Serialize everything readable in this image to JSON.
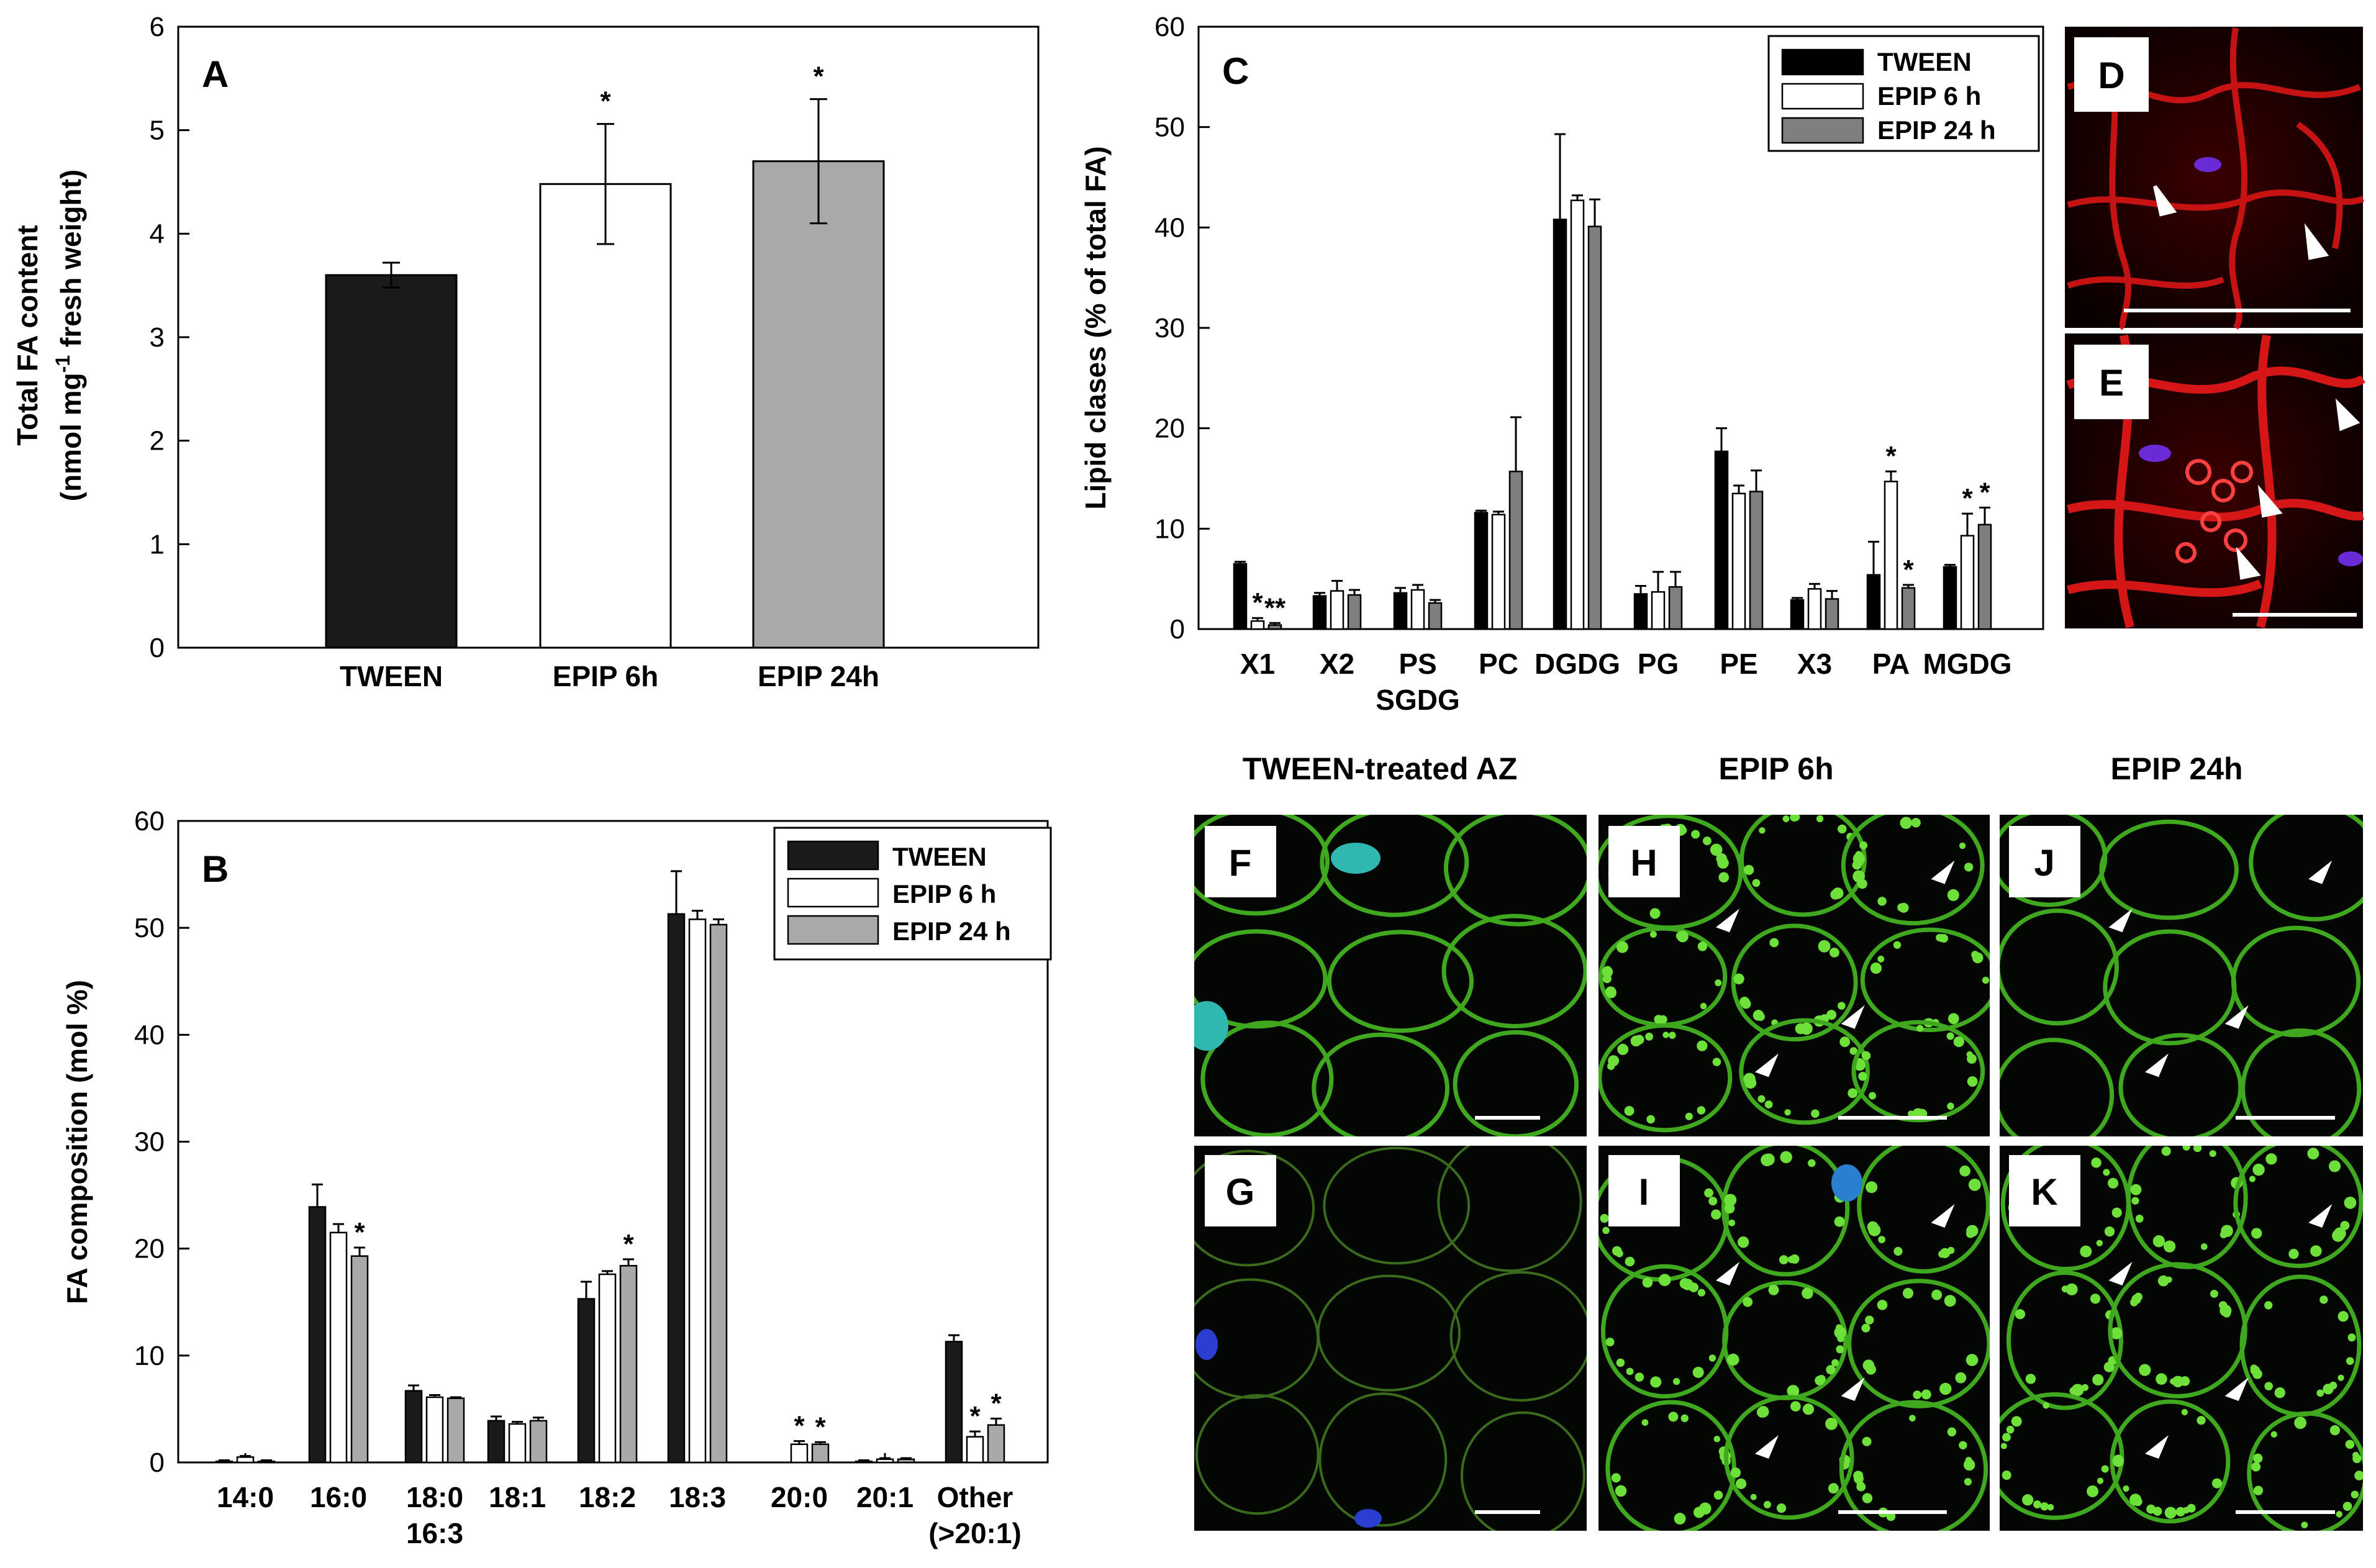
{
  "colors": {
    "tween": "#1a1a1a",
    "epip6": "#ffffff",
    "epip24": "#a9a9a9",
    "tween_C": "#000000",
    "epip24_C": "#7f7f7f"
  },
  "chart_data": [
    {
      "panel": "A",
      "type": "bar",
      "categories": [
        "TWEEN",
        "EPIP 6h",
        "EPIP 24h"
      ],
      "values": [
        3.6,
        4.48,
        4.7
      ],
      "errors": [
        0.12,
        0.58,
        0.6
      ],
      "stars": [
        "",
        "*",
        "*"
      ],
      "ylabel_line1": "Total FA content",
      "ylabel_line2": "(nmol mg⁻¹ fresh weight)",
      "ylim": [
        0,
        6
      ],
      "yticks": [
        0,
        1,
        2,
        3,
        4,
        5,
        6
      ],
      "grid": false
    },
    {
      "panel": "B",
      "type": "bar",
      "categories": [
        "14:0",
        "16:0",
        "18:0\n16:3",
        "18:1",
        "18:2",
        "18:3",
        "20:0",
        "20:1",
        "Other\n(>20:1)"
      ],
      "series": [
        {
          "name": "TWEEN",
          "values": [
            0.1,
            23.9,
            6.7,
            3.9,
            15.3,
            51.3,
            0.0,
            0.1,
            11.3
          ],
          "errors": [
            0.1,
            2.1,
            0.5,
            0.4,
            1.6,
            4.0,
            0.0,
            0.1,
            0.6
          ],
          "stars": [
            "",
            "",
            "",
            "",
            "",
            "",
            "",
            "",
            ""
          ]
        },
        {
          "name": "EPIP 6 h",
          "values": [
            0.5,
            21.5,
            6.1,
            3.6,
            17.6,
            50.8,
            1.7,
            0.3,
            2.4
          ],
          "errors": [
            0.1,
            0.8,
            0.2,
            0.2,
            0.3,
            0.8,
            0.3,
            0.1,
            0.5
          ],
          "stars": [
            "",
            "",
            "",
            "",
            "",
            "",
            "*",
            "",
            "*"
          ]
        },
        {
          "name": "EPIP 24 h",
          "values": [
            0.1,
            19.3,
            6.0,
            3.9,
            18.4,
            50.3,
            1.7,
            0.3,
            3.5
          ],
          "errors": [
            0.1,
            0.8,
            0.1,
            0.3,
            0.6,
            0.5,
            0.2,
            0.1,
            0.6
          ],
          "stars": [
            "",
            "*",
            "",
            "",
            "*",
            "",
            "*",
            "",
            "*"
          ]
        }
      ],
      "ylabel": "FA composition (mol %)",
      "ylim": [
        0,
        60
      ],
      "yticks": [
        0,
        10,
        20,
        30,
        40,
        50,
        60
      ],
      "legend_position": "top-right",
      "grid": false
    },
    {
      "panel": "C",
      "type": "bar",
      "categories": [
        "X1",
        "X2",
        "PS\nSGDG",
        "PC",
        "DGDG",
        "PG",
        "PE",
        "X3",
        "PA",
        "MGDG"
      ],
      "series": [
        {
          "name": "TWEEN",
          "values": [
            6.5,
            3.3,
            3.6,
            11.6,
            40.8,
            3.5,
            17.7,
            2.9,
            5.4,
            6.2
          ],
          "errors": [
            0.2,
            0.3,
            0.5,
            0.2,
            8.5,
            0.8,
            2.3,
            0.2,
            3.3,
            0.2
          ],
          "stars": [
            "",
            "",
            "",
            "",
            "",
            "",
            "",
            "",
            "",
            ""
          ]
        },
        {
          "name": "EPIP 6 h",
          "values": [
            0.8,
            3.8,
            3.9,
            11.4,
            42.7,
            3.7,
            13.5,
            4.0,
            14.7,
            9.3
          ],
          "errors": [
            0.3,
            1.0,
            0.5,
            0.3,
            0.5,
            2.0,
            0.8,
            0.5,
            1.0,
            2.2
          ],
          "stars": [
            "*",
            "",
            "",
            "",
            "",
            "",
            "",
            "",
            "*",
            "*"
          ]
        },
        {
          "name": "EPIP 24 h",
          "values": [
            0.4,
            3.4,
            2.6,
            15.7,
            40.1,
            4.2,
            13.7,
            3.0,
            4.1,
            10.4
          ],
          "errors": [
            0.2,
            0.5,
            0.3,
            5.4,
            2.7,
            1.5,
            2.1,
            0.8,
            0.3,
            1.7
          ],
          "stars": [
            "**",
            "",
            "",
            "",
            "",
            "",
            "",
            "",
            "*",
            "*"
          ]
        }
      ],
      "ylabel": "Lipid clases (% of total FA)",
      "ylim": [
        0,
        60
      ],
      "yticks": [
        0,
        10,
        20,
        30,
        40,
        50,
        60
      ],
      "legend_position": "top-right",
      "grid": false
    }
  ],
  "micrographs": {
    "panel_D": "D",
    "panel_E": "E",
    "panel_F": "F",
    "panel_G": "G",
    "panel_H": "H",
    "panel_I": "I",
    "panel_J": "J",
    "panel_K": "K",
    "col_title_1": "TWEEN-treated AZ",
    "col_title_2": "EPIP 6h",
    "col_title_3": "EPIP 24h"
  }
}
